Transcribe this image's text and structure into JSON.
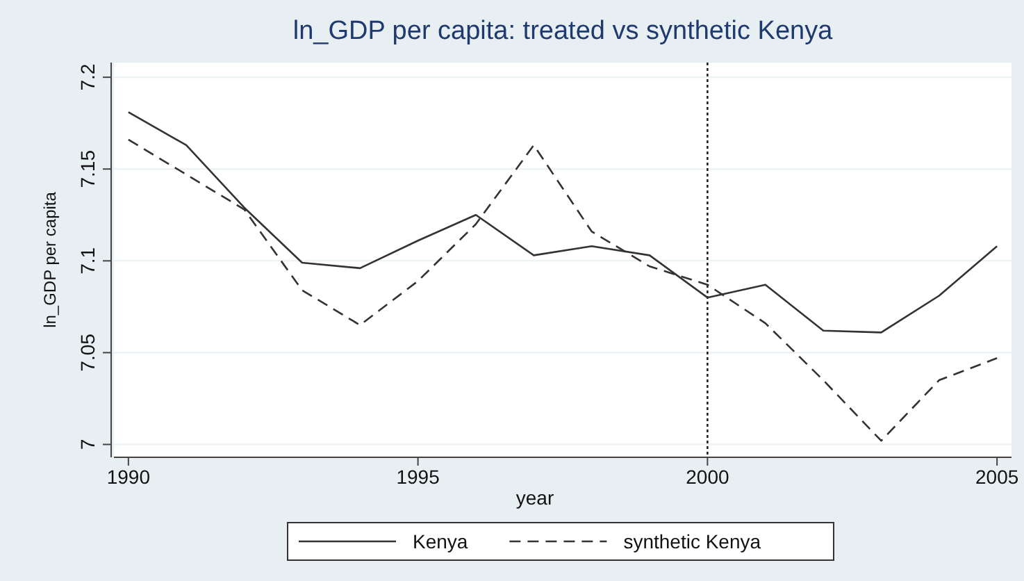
{
  "chart_data": {
    "type": "line",
    "title": "ln_GDP per capita: treated vs synthetic Kenya",
    "xlabel": "year",
    "ylabel": "ln_GDP per capita",
    "x": [
      1990,
      1991,
      1992,
      1993,
      1994,
      1995,
      1996,
      1997,
      1998,
      1999,
      2000,
      2001,
      2002,
      2003,
      2004,
      2005
    ],
    "series": [
      {
        "name": "Kenya",
        "color": "#333333",
        "line_style": "solid",
        "values": [
          7.181,
          7.163,
          7.129,
          7.099,
          7.096,
          7.111,
          7.125,
          7.103,
          7.108,
          7.103,
          7.08,
          7.087,
          7.062,
          7.061,
          7.081,
          7.108
        ]
      },
      {
        "name": "synthetic Kenya",
        "color": "#333333",
        "line_style": "dashed",
        "values": [
          7.166,
          7.147,
          7.128,
          7.084,
          7.065,
          7.089,
          7.12,
          7.163,
          7.116,
          7.097,
          7.087,
          7.066,
          7.035,
          7.002,
          7.035,
          7.047
        ]
      }
    ],
    "xlim": [
      1989.75,
      2005.25
    ],
    "xticks": [
      1990,
      1995,
      2000,
      2005
    ],
    "ylim": [
      6.993,
      7.208
    ],
    "yticks": [
      7,
      7.05,
      7.1,
      7.15,
      7.2
    ],
    "ref_lines": [
      {
        "axis": "x",
        "value": 2000,
        "line_style": "dotted",
        "color": "#222222"
      }
    ],
    "grid": "y",
    "legend": "bottom"
  }
}
